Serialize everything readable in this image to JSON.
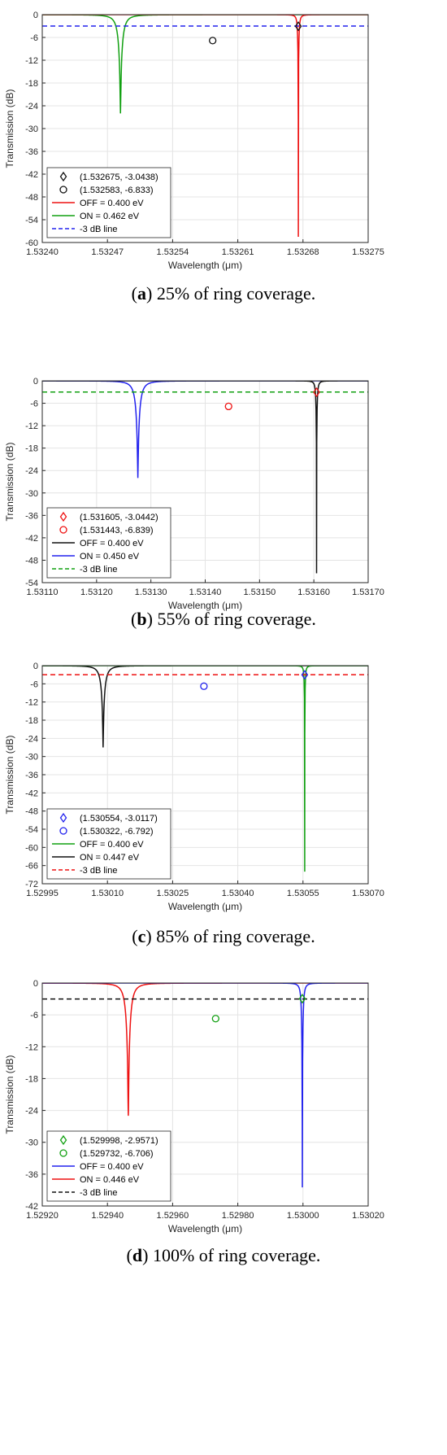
{
  "panels": [
    {
      "caption_letter": "a",
      "caption_text": " 25% of ring coverage.",
      "ylabel": "Transmission (dB)",
      "xlabel": "Wavelength (μm)",
      "xlim": [
        1.5324,
        1.53275
      ],
      "ylim": [
        -60,
        0
      ],
      "xticks": [
        "1.53240",
        "1.53247",
        "1.53254",
        "1.53261",
        "1.53268",
        "1.53275"
      ],
      "yticks": [
        "0",
        "-6",
        "-12",
        "-18",
        "-24",
        "-30",
        "-36",
        "-42",
        "-48",
        "-54",
        "-60"
      ],
      "colors": {
        "off": "#ee1111",
        "on": "#11a011",
        "line": "#2222ee",
        "marker": "#111111"
      },
      "off": {
        "label": "OFF = 0.400 eV",
        "res": 1.532675,
        "min": -58.5,
        "hw": 1.3e-06
      },
      "on": {
        "label": "ON = 0.462 eV",
        "res": 1.532484,
        "min": -26.0,
        "hw": 5e-06
      },
      "threshold": {
        "label": "-3 dB line",
        "value": -3
      },
      "marker_diamond": {
        "label": "(1.532675, -3.0438)",
        "x": 1.532675,
        "y": -3.0438
      },
      "marker_circle": {
        "label": "(1.532583, -6.833)",
        "x": 1.532583,
        "y": -6.833
      }
    },
    {
      "caption_letter": "b",
      "caption_text": " 55% of ring coverage.",
      "ylabel": "Transmission (dB)",
      "xlabel": "Wavelength (μm)",
      "xlim": [
        1.5311,
        1.5317
      ],
      "ylim": [
        -54,
        0
      ],
      "xticks": [
        "1.53110",
        "1.53120",
        "1.53130",
        "1.53140",
        "1.53150",
        "1.53160",
        "1.53170"
      ],
      "yticks": [
        "0",
        "-6",
        "-12",
        "-18",
        "-24",
        "-30",
        "-36",
        "-42",
        "-48",
        "-54"
      ],
      "colors": {
        "off": "#111111",
        "on": "#2222ee",
        "line": "#11a011",
        "marker": "#ee1111"
      },
      "off": {
        "label": "OFF = 0.400 eV",
        "res": 1.531605,
        "min": -51.5,
        "hw": 2.2e-06
      },
      "on": {
        "label": "ON = 0.450 eV",
        "res": 1.531276,
        "min": -26.0,
        "hw": 8.6e-06
      },
      "threshold": {
        "label": "-3 dB line",
        "value": -3
      },
      "marker_diamond": {
        "label": "(1.531605, -3.0442)",
        "x": 1.531605,
        "y": -3.0442
      },
      "marker_circle": {
        "label": "(1.531443, -6.839)",
        "x": 1.531443,
        "y": -6.839
      }
    },
    {
      "caption_letter": "c",
      "caption_text": " 85% of ring coverage.",
      "ylabel": "Transmission (dB)",
      "xlabel": "Wavelength (μm)",
      "xlim": [
        1.52995,
        1.5307
      ],
      "ylim": [
        -72,
        0
      ],
      "xticks": [
        "1.52995",
        "1.53010",
        "1.53025",
        "1.53040",
        "1.53055",
        "1.53070"
      ],
      "yticks": [
        "0",
        "-6",
        "-12",
        "-18",
        "-24",
        "-30",
        "-36",
        "-42",
        "-48",
        "-54",
        "-60",
        "-66",
        "-72"
      ],
      "colors": {
        "off": "#11a011",
        "on": "#111111",
        "line": "#ee1111",
        "marker": "#2222ee"
      },
      "off": {
        "label": "OFF = 0.400 eV",
        "res": 1.530554,
        "min": -68.0,
        "hw": 2.2e-06
      },
      "on": {
        "label": "ON = 0.447 eV",
        "res": 1.53009,
        "min": -27.0,
        "hw": 1e-05
      },
      "threshold": {
        "label": "-3 dB line",
        "value": -3
      },
      "marker_diamond": {
        "label": "(1.530554, -3.0117)",
        "x": 1.530554,
        "y": -3.0117
      },
      "marker_circle": {
        "label": "(1.530322, -6.792)",
        "x": 1.530322,
        "y": -6.792
      }
    },
    {
      "caption_letter": "d",
      "caption_text": " 100% of ring coverage.",
      "ylabel": "Transmission (dB)",
      "xlabel": "Wavelength (μm)",
      "xlim": [
        1.5292,
        1.5302
      ],
      "ylim": [
        -42,
        0
      ],
      "xticks": [
        "1.52920",
        "1.52940",
        "1.52960",
        "1.52980",
        "1.53000",
        "1.53020"
      ],
      "yticks": [
        "0",
        "-6",
        "-12",
        "-18",
        "-24",
        "-30",
        "-36",
        "-42"
      ],
      "colors": {
        "off": "#2222ee",
        "on": "#ee1111",
        "line": "#111111",
        "marker": "#11a011"
      },
      "off": {
        "label": "OFF = 0.400 eV",
        "res": 1.529998,
        "min": -38.5,
        "hw": 4.8e-06
      },
      "on": {
        "label": "ON = 0.446 eV",
        "res": 1.529464,
        "min": -25.0,
        "hw": 1.38e-05
      },
      "threshold": {
        "label": "-3 dB line",
        "value": -3
      },
      "marker_diamond": {
        "label": "(1.529998, -2.9571)",
        "x": 1.529998,
        "y": -2.9571
      },
      "marker_circle": {
        "label": "(1.529732, -6.706)",
        "x": 1.529732,
        "y": -6.706
      }
    }
  ],
  "chart_data": [
    {
      "type": "line",
      "title": "",
      "xlabel": "Wavelength (μm)",
      "ylabel": "Transmission (dB)",
      "xlim": [
        1.5324,
        1.53275
      ],
      "ylim": [
        -60,
        0
      ],
      "grid": true,
      "legend": "bottom-left",
      "series": [
        {
          "name": "OFF = 0.400 eV",
          "color": "#ee1111",
          "resonance_um": 1.532675,
          "min_db": -58.5
        },
        {
          "name": "ON = 0.462 eV",
          "color": "#11a011",
          "resonance_um": 1.532484,
          "min_db": -26.0
        },
        {
          "name": "-3 dB line",
          "color": "#2222ee",
          "y": -3
        }
      ],
      "markers": [
        {
          "label": "(1.532675, -3.0438)",
          "shape": "diamond",
          "x": 1.532675,
          "y": -3.0438
        },
        {
          "label": "(1.532583, -6.833)",
          "shape": "circle",
          "x": 1.532583,
          "y": -6.833
        }
      ]
    },
    {
      "type": "line",
      "title": "",
      "xlabel": "Wavelength (μm)",
      "ylabel": "Transmission (dB)",
      "xlim": [
        1.5311,
        1.5317
      ],
      "ylim": [
        -54,
        0
      ],
      "grid": true,
      "legend": "bottom-left",
      "series": [
        {
          "name": "OFF = 0.400 eV",
          "color": "#111111",
          "resonance_um": 1.531605,
          "min_db": -51.5
        },
        {
          "name": "ON = 0.450 eV",
          "color": "#2222ee",
          "resonance_um": 1.531276,
          "min_db": -26.0
        },
        {
          "name": "-3 dB line",
          "color": "#11a011",
          "y": -3
        }
      ],
      "markers": [
        {
          "label": "(1.531605, -3.0442)",
          "shape": "diamond",
          "x": 1.531605,
          "y": -3.0442
        },
        {
          "label": "(1.531443, -6.839)",
          "shape": "circle",
          "x": 1.531443,
          "y": -6.839
        }
      ]
    },
    {
      "type": "line",
      "title": "",
      "xlabel": "Wavelength (μm)",
      "ylabel": "Transmission (dB)",
      "xlim": [
        1.52995,
        1.5307
      ],
      "ylim": [
        -72,
        0
      ],
      "grid": true,
      "legend": "bottom-left",
      "series": [
        {
          "name": "OFF = 0.400 eV",
          "color": "#11a011",
          "resonance_um": 1.530554,
          "min_db": -68.0
        },
        {
          "name": "ON = 0.447 eV",
          "color": "#111111",
          "resonance_um": 1.53009,
          "min_db": -27.0
        },
        {
          "name": "-3 dB line",
          "color": "#ee1111",
          "y": -3
        }
      ],
      "markers": [
        {
          "label": "(1.530554, -3.0117)",
          "shape": "diamond",
          "x": 1.530554,
          "y": -3.0117
        },
        {
          "label": "(1.530322, -6.792)",
          "shape": "circle",
          "x": 1.530322,
          "y": -6.792
        }
      ]
    },
    {
      "type": "line",
      "title": "",
      "xlabel": "Wavelength (μm)",
      "ylabel": "Transmission (dB)",
      "xlim": [
        1.5292,
        1.5302
      ],
      "ylim": [
        -42,
        0
      ],
      "grid": true,
      "legend": "bottom-left",
      "series": [
        {
          "name": "OFF = 0.400 eV",
          "color": "#2222ee",
          "resonance_um": 1.529998,
          "min_db": -38.5
        },
        {
          "name": "ON = 0.446 eV",
          "color": "#ee1111",
          "resonance_um": 1.529464,
          "min_db": -25.0
        },
        {
          "name": "-3 dB line",
          "color": "#111111",
          "y": -3
        }
      ],
      "markers": [
        {
          "label": "(1.529998, -2.9571)",
          "shape": "diamond",
          "x": 1.529998,
          "y": -2.9571
        },
        {
          "label": "(1.529732, -6.706)",
          "shape": "circle",
          "x": 1.529732,
          "y": -6.706
        }
      ]
    }
  ]
}
